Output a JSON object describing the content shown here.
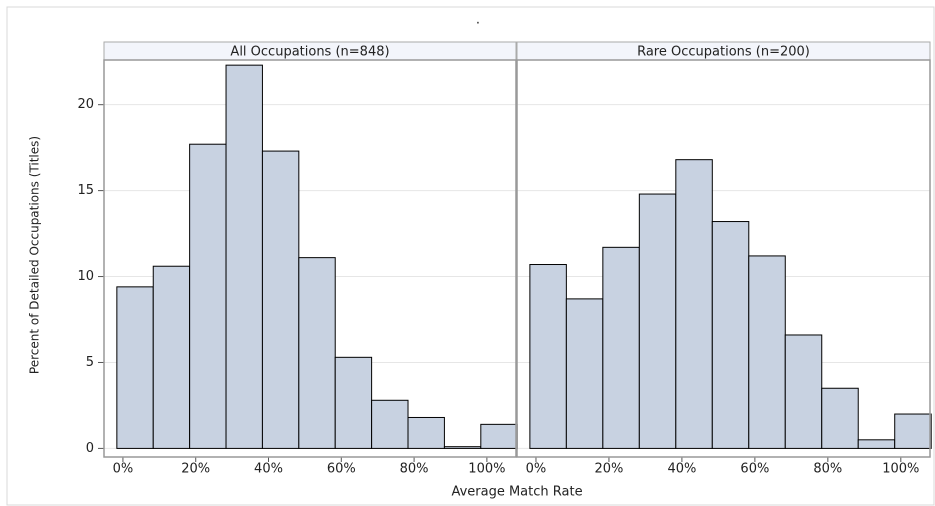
{
  "chart_data": {
    "type": "histogram",
    "title": ".",
    "xlabel": "Average Match Rate",
    "ylabel": "Percent of Detailed Occupations (Titles)",
    "color": "#c8d2e1",
    "grid": true,
    "bins": [
      -1.67,
      8.33,
      18.33,
      28.33,
      38.33,
      48.33,
      58.33,
      68.33,
      78.33,
      88.33,
      98.33,
      108.33
    ],
    "xlim": [
      -5.2,
      108
    ],
    "ylim": [
      -0.5,
      22.6
    ],
    "xticks": [
      {
        "value": 0,
        "label": "0%"
      },
      {
        "value": 20,
        "label": "20%"
      },
      {
        "value": 40,
        "label": "40%"
      },
      {
        "value": 60,
        "label": "60%"
      },
      {
        "value": 80,
        "label": "80%"
      },
      {
        "value": 100,
        "label": "100%"
      }
    ],
    "yticks": [
      0,
      5,
      10,
      15,
      20
    ],
    "panels": [
      {
        "title": "All Occupations (n=848)",
        "values": [
          9.4,
          10.6,
          17.7,
          22.3,
          17.3,
          11.1,
          5.3,
          2.8,
          1.8,
          0.1,
          1.4
        ]
      },
      {
        "title": "Rare Occupations (n=200)",
        "values": [
          10.7,
          8.7,
          11.7,
          14.8,
          16.8,
          13.2,
          11.2,
          6.6,
          3.5,
          0.5,
          2.0
        ]
      }
    ]
  }
}
